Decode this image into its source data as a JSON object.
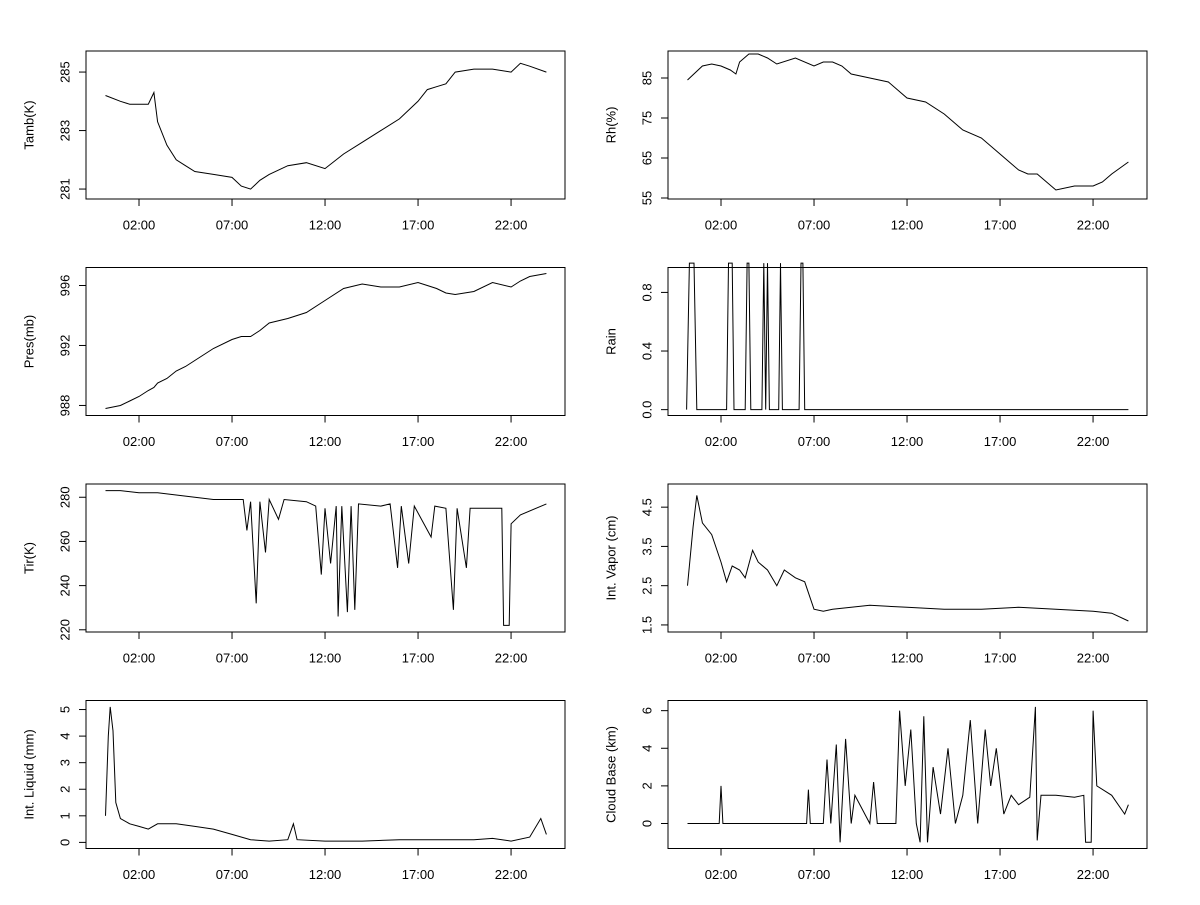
{
  "chart_data": [
    {
      "type": "line",
      "ylabel": "Tamb(K)",
      "x": [
        0.2,
        1,
        1.5,
        2,
        2.5,
        2.8,
        3,
        3.5,
        4,
        4.5,
        5,
        6,
        7,
        7.5,
        8,
        8.5,
        9,
        10,
        11,
        12,
        13,
        14,
        15,
        16,
        17,
        17.5,
        18,
        18.5,
        19,
        20,
        21,
        22,
        22.5,
        23,
        23.9
      ],
      "values": [
        284.2,
        284.0,
        283.9,
        283.9,
        283.9,
        284.3,
        283.3,
        282.5,
        282.0,
        281.8,
        281.6,
        281.5,
        281.4,
        281.1,
        281.0,
        281.3,
        281.5,
        281.8,
        281.9,
        281.7,
        282.2,
        282.6,
        283.0,
        283.4,
        284.0,
        284.4,
        284.5,
        284.6,
        285.0,
        285.1,
        285.1,
        285.0,
        285.3,
        285.2,
        285.0
      ],
      "xlim": [
        -0.85,
        24.9
      ],
      "xticks": [
        {
          "value": 2,
          "label": "02:00"
        },
        {
          "value": 7,
          "label": "07:00"
        },
        {
          "value": 12,
          "label": "12:00"
        },
        {
          "value": 17,
          "label": "17:00"
        },
        {
          "value": 22,
          "label": "22:00"
        }
      ],
      "ylim": [
        280.66,
        285.72
      ],
      "yticks": [
        281,
        283,
        285
      ],
      "color": "#000000"
    },
    {
      "type": "line",
      "ylabel": "Rh(%)",
      "x": [
        0.2,
        1,
        1.5,
        2,
        2.5,
        2.8,
        3,
        3.5,
        4,
        4.5,
        5,
        6,
        7,
        7.5,
        8,
        8.5,
        9,
        10,
        11,
        12,
        13,
        14,
        15,
        16,
        17,
        17.5,
        18,
        18.5,
        19,
        20,
        21,
        22,
        22.5,
        23,
        23.9
      ],
      "values": [
        84.5,
        88,
        88.5,
        88,
        87,
        86,
        89,
        91,
        91,
        90,
        88.5,
        90,
        88,
        89,
        89,
        88,
        86,
        85,
        84,
        80,
        79,
        76,
        72,
        70,
        66,
        64,
        62,
        61,
        61,
        57,
        58,
        58,
        59,
        61,
        64
      ],
      "xlim": [
        -0.85,
        24.9
      ],
      "xticks": [
        {
          "value": 2,
          "label": "02:00"
        },
        {
          "value": 7,
          "label": "07:00"
        },
        {
          "value": 12,
          "label": "12:00"
        },
        {
          "value": 17,
          "label": "17:00"
        },
        {
          "value": 22,
          "label": "22:00"
        }
      ],
      "ylim": [
        54.75,
        91.75
      ],
      "yticks": [
        55,
        65,
        75,
        85
      ],
      "color": "#000000"
    },
    {
      "type": "line",
      "ylabel": "Pres(mb)",
      "x": [
        0.2,
        1,
        1.5,
        2,
        2.5,
        2.8,
        3,
        3.5,
        4,
        4.5,
        5,
        6,
        7,
        7.5,
        8,
        8.5,
        9,
        10,
        11,
        12,
        13,
        14,
        15,
        16,
        17,
        17.5,
        18,
        18.5,
        19,
        20,
        21,
        22,
        22.5,
        23,
        23.9
      ],
      "values": [
        987.8,
        988.0,
        988.3,
        988.6,
        989.0,
        989.2,
        989.5,
        989.8,
        990.3,
        990.6,
        991.0,
        991.8,
        992.4,
        992.6,
        992.6,
        993.0,
        993.5,
        993.8,
        994.2,
        995.0,
        995.8,
        996.1,
        995.9,
        995.9,
        996.2,
        996.0,
        995.8,
        995.5,
        995.4,
        995.6,
        996.2,
        995.9,
        996.3,
        996.6,
        996.8
      ],
      "xlim": [
        -0.85,
        24.9
      ],
      "xticks": [
        {
          "value": 2,
          "label": "02:00"
        },
        {
          "value": 7,
          "label": "07:00"
        },
        {
          "value": 12,
          "label": "12:00"
        },
        {
          "value": 17,
          "label": "17:00"
        },
        {
          "value": 22,
          "label": "22:00"
        }
      ],
      "ylim": [
        987.33,
        997.2
      ],
      "yticks": [
        988,
        992,
        996
      ],
      "color": "#000000"
    },
    {
      "type": "line",
      "ylabel": "Rain",
      "x": [
        0.15,
        0.3,
        0.55,
        0.7,
        2.3,
        2.4,
        2.6,
        2.7,
        3.3,
        3.4,
        3.5,
        3.6,
        4.2,
        4.3,
        4.4,
        4.5,
        4.6,
        5.1,
        5.2,
        5.3,
        6.2,
        6.3,
        6.4,
        6.5,
        23.9
      ],
      "values": [
        0,
        1,
        1,
        0,
        0,
        1,
        1,
        0,
        0,
        1,
        1,
        0,
        0,
        1,
        0,
        1,
        0,
        0,
        1,
        0,
        0,
        1,
        1,
        0,
        0
      ],
      "xlim": [
        -0.85,
        24.9
      ],
      "xticks": [
        {
          "value": 2,
          "label": "02:00"
        },
        {
          "value": 7,
          "label": "07:00"
        },
        {
          "value": 12,
          "label": "12:00"
        },
        {
          "value": 17,
          "label": "17:00"
        },
        {
          "value": 22,
          "label": "22:00"
        }
      ],
      "ylim": [
        -0.04,
        0.97
      ],
      "yticks": [
        {
          "value": 0,
          "label": "0.0"
        },
        {
          "value": 0.4,
          "label": "0.4"
        },
        {
          "value": 0.8,
          "label": "0.8"
        }
      ],
      "color": "#000000"
    },
    {
      "type": "line",
      "ylabel": "Tir(K)",
      "x": [
        0.2,
        1,
        2,
        3,
        4,
        5,
        6,
        7,
        7.6,
        7.8,
        8,
        8.3,
        8.5,
        8.8,
        9,
        9.5,
        9.8,
        11,
        11.5,
        11.8,
        12,
        12.3,
        12.6,
        12.7,
        12.9,
        13.2,
        13.4,
        13.6,
        13.8,
        15,
        15.5,
        15.9,
        16.1,
        16.5,
        16.8,
        17.7,
        17.9,
        18.5,
        18.9,
        19.1,
        19.6,
        19.8,
        21.5,
        21.6,
        21.9,
        22.0,
        22.5,
        23.9
      ],
      "values": [
        283,
        283,
        282,
        282,
        281,
        280,
        279,
        279,
        279,
        265,
        278,
        232,
        278,
        255,
        279,
        270,
        279,
        278,
        276,
        245,
        275,
        250,
        276,
        226,
        276,
        228,
        276,
        229,
        277,
        276,
        277,
        248,
        276,
        250,
        276,
        262,
        276,
        275,
        229,
        275,
        248,
        275,
        275,
        222,
        222,
        268,
        272,
        277
      ],
      "xlim": [
        -0.85,
        24.9
      ],
      "xticks": [
        {
          "value": 2,
          "label": "02:00"
        },
        {
          "value": 7,
          "label": "07:00"
        },
        {
          "value": 12,
          "label": "12:00"
        },
        {
          "value": 17,
          "label": "17:00"
        },
        {
          "value": 22,
          "label": "22:00"
        }
      ],
      "ylim": [
        219,
        286
      ],
      "yticks": [
        220,
        240,
        260,
        280
      ],
      "color": "#000000"
    },
    {
      "type": "line",
      "ylabel": "Int. Vapor (cm)",
      "x": [
        0.2,
        0.5,
        0.7,
        1,
        1.5,
        2,
        2.3,
        2.6,
        3,
        3.3,
        3.7,
        4,
        4.5,
        5,
        5.4,
        6,
        6.5,
        7,
        7.5,
        8,
        10,
        12,
        14,
        16,
        18,
        20,
        22,
        23,
        23.9
      ],
      "values": [
        2.5,
        4.0,
        4.8,
        4.1,
        3.8,
        3.1,
        2.6,
        3.0,
        2.9,
        2.7,
        3.4,
        3.1,
        2.9,
        2.5,
        2.9,
        2.7,
        2.6,
        1.9,
        1.85,
        1.9,
        2.0,
        1.95,
        1.9,
        1.9,
        1.95,
        1.9,
        1.85,
        1.8,
        1.6
      ],
      "xlim": [
        -0.85,
        24.9
      ],
      "xticks": [
        {
          "value": 2,
          "label": "02:00"
        },
        {
          "value": 7,
          "label": "07:00"
        },
        {
          "value": 12,
          "label": "12:00"
        },
        {
          "value": 17,
          "label": "17:00"
        },
        {
          "value": 22,
          "label": "22:00"
        }
      ],
      "ylim": [
        1.32,
        5.09
      ],
      "yticks": [
        1.5,
        2.5,
        3.5,
        4.5
      ],
      "color": "#000000"
    },
    {
      "type": "line",
      "ylabel": "Int. Liquid (mm)",
      "x": [
        0.2,
        0.35,
        0.45,
        0.6,
        0.75,
        1,
        1.5,
        2,
        2.5,
        3,
        4,
        5,
        6,
        7,
        8,
        9,
        10,
        10.3,
        10.5,
        12,
        14,
        16,
        18,
        20,
        21,
        22,
        23,
        23.6,
        23.9
      ],
      "values": [
        1.0,
        4.0,
        5.1,
        4.2,
        1.5,
        0.9,
        0.7,
        0.6,
        0.5,
        0.7,
        0.7,
        0.6,
        0.5,
        0.3,
        0.1,
        0.05,
        0.1,
        0.7,
        0.1,
        0.05,
        0.05,
        0.1,
        0.1,
        0.1,
        0.15,
        0.05,
        0.2,
        0.9,
        0.3
      ],
      "xlim": [
        -0.85,
        24.9
      ],
      "xticks": [
        {
          "value": 2,
          "label": "02:00"
        },
        {
          "value": 7,
          "label": "07:00"
        },
        {
          "value": 12,
          "label": "12:00"
        },
        {
          "value": 17,
          "label": "17:00"
        },
        {
          "value": 22,
          "label": "22:00"
        }
      ],
      "ylim": [
        -0.23,
        5.34
      ],
      "yticks": [
        0,
        1,
        2,
        3,
        4,
        5
      ],
      "color": "#000000"
    },
    {
      "type": "line",
      "ylabel": "Cloud Base (km)",
      "x": [
        0.2,
        1.9,
        2.0,
        2.1,
        6.6,
        6.7,
        6.8,
        7.5,
        7.7,
        7.9,
        8.2,
        8.4,
        8.7,
        9,
        9.2,
        10,
        10.2,
        10.4,
        11.4,
        11.6,
        11.9,
        12.2,
        12.5,
        12.7,
        12.9,
        13.1,
        13.4,
        13.8,
        14.2,
        14.6,
        15,
        15.4,
        15.8,
        16.2,
        16.5,
        16.8,
        17.2,
        17.6,
        18,
        18.6,
        18.9,
        19.0,
        19.2,
        20,
        21,
        21.5,
        21.6,
        21.9,
        22,
        22.2,
        23,
        23.7,
        23.9
      ],
      "values": [
        0,
        0,
        2,
        0,
        0,
        1.8,
        0,
        0,
        3.4,
        0,
        4.2,
        -1,
        4.5,
        0,
        1.5,
        0,
        2.2,
        0,
        0,
        6,
        2,
        5,
        0,
        -1,
        5.7,
        -1,
        3,
        0.5,
        4,
        0,
        1.5,
        5.5,
        0,
        5,
        2,
        4,
        0.5,
        1.5,
        1,
        1.4,
        6.2,
        -0.9,
        1.5,
        1.5,
        1.4,
        1.5,
        -1,
        -1,
        6,
        2,
        1.5,
        0.5,
        1
      ],
      "xlim": [
        -0.85,
        24.9
      ],
      "xticks": [
        {
          "value": 2,
          "label": "02:00"
        },
        {
          "value": 7,
          "label": "07:00"
        },
        {
          "value": 12,
          "label": "12:00"
        },
        {
          "value": 17,
          "label": "17:00"
        },
        {
          "value": 22,
          "label": "22:00"
        }
      ],
      "ylim": [
        -1.33,
        6.54
      ],
      "yticks": [
        0,
        2,
        4,
        6
      ],
      "color": "#000000"
    }
  ]
}
